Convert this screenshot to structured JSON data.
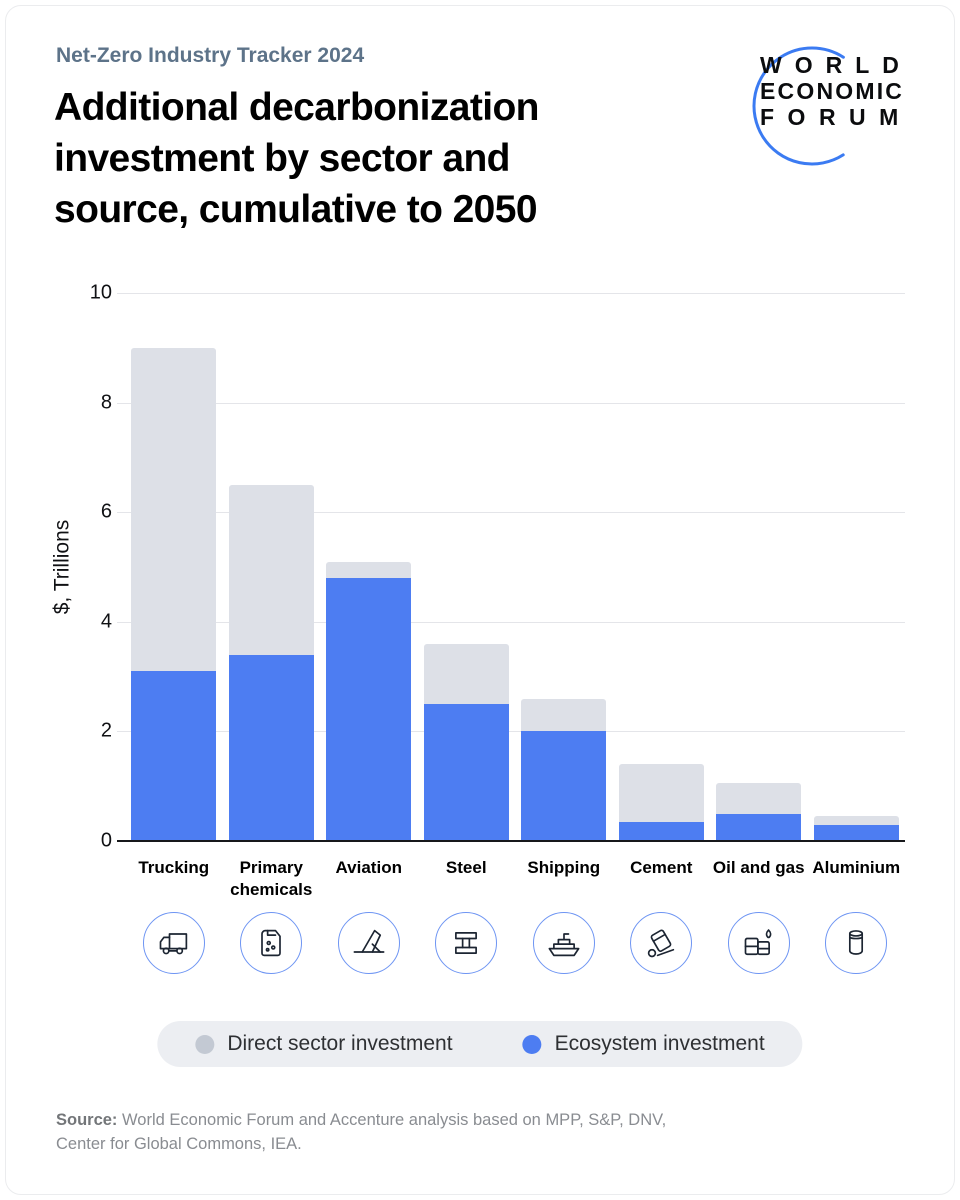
{
  "header": {
    "eyebrow": "Net-Zero Industry Tracker 2024",
    "title_lines": [
      "Additional decarbonization",
      "investment by sector and",
      "source, cumulative to 2050"
    ],
    "logo_lines": [
      "WORLD",
      "ECONOMIC",
      "FORUM"
    ]
  },
  "chart_data": {
    "type": "bar",
    "stacked": true,
    "title": "Additional decarbonization investment by sector and source, cumulative to 2050",
    "xlabel": "",
    "ylabel": "$, Trillions",
    "ylim": [
      0,
      10
    ],
    "yticks": [
      0,
      2,
      4,
      6,
      8,
      10
    ],
    "grid": true,
    "legend_position": "bottom",
    "categories": [
      "Trucking",
      "Primary chemicals",
      "Aviation",
      "Steel",
      "Shipping",
      "Cement",
      "Oil and gas",
      "Aluminium"
    ],
    "series": [
      {
        "name": "Ecosystem investment",
        "color": "#4d7df2",
        "values": [
          3.1,
          3.4,
          4.8,
          2.5,
          2.0,
          0.35,
          0.5,
          0.3
        ]
      },
      {
        "name": "Direct sector investment",
        "color": "#dde0e7",
        "values": [
          5.9,
          3.1,
          0.3,
          1.1,
          0.6,
          1.05,
          0.55,
          0.15
        ]
      }
    ],
    "totals": [
      9.0,
      6.5,
      5.1,
      3.6,
      2.6,
      1.4,
      1.05,
      0.45
    ],
    "icons": [
      "truck-icon",
      "chemicals-icon",
      "airplane-icon",
      "steel-beam-icon",
      "ship-icon",
      "cement-icon",
      "oil-barrel-icon",
      "aluminium-can-icon"
    ]
  },
  "legend": {
    "items": [
      {
        "label": "Direct sector investment",
        "color": "#c3c9d3"
      },
      {
        "label": "Ecosystem investment",
        "color": "#4d7df2"
      }
    ]
  },
  "source": {
    "label": "Source:",
    "lines": [
      "World Economic Forum and Accenture analysis based on MPP, S&P, DNV,",
      "Center for Global Commons, IEA."
    ]
  }
}
